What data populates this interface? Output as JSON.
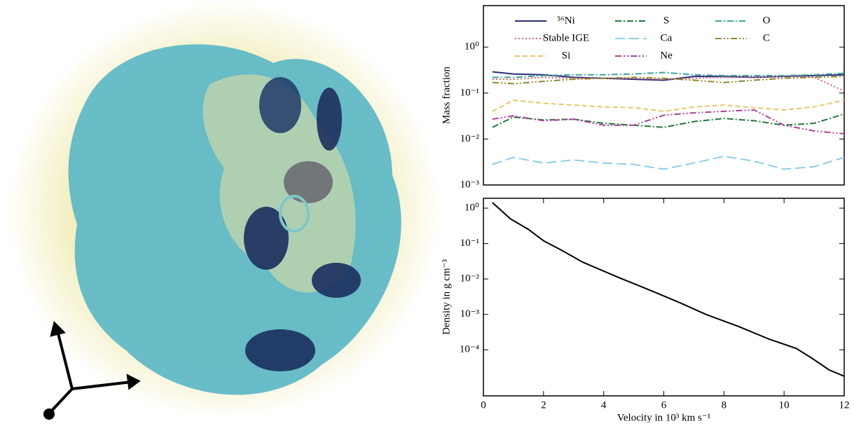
{
  "chart_data": [
    {
      "type": "line",
      "ylabel": "Mass fraction",
      "log_y": true,
      "xlim": [
        0,
        12
      ],
      "ylim": [
        0.001,
        8
      ],
      "yticks": [
        {
          "value": 1,
          "label": "10⁰"
        },
        {
          "value": 0.1,
          "label": "10⁻¹"
        },
        {
          "value": 0.01,
          "label": "10⁻²"
        },
        {
          "value": 0.001,
          "label": "10⁻³"
        }
      ],
      "legend": "upper center",
      "x": [
        0.3,
        1,
        2,
        3,
        4,
        5,
        6,
        7,
        8,
        9,
        10,
        11,
        12
      ],
      "series": [
        {
          "name": "⁵⁶Ni",
          "color": "#2b2c7c",
          "linestyle": "solid",
          "values": [
            0.29,
            0.26,
            0.25,
            0.22,
            0.21,
            0.2,
            0.19,
            0.23,
            0.23,
            0.22,
            0.23,
            0.24,
            0.25
          ]
        },
        {
          "name": "Stable IGE",
          "color": "#e0636b",
          "linestyle": "dotted",
          "values": [
            0.2,
            0.2,
            0.22,
            0.21,
            0.21,
            0.21,
            0.2,
            0.21,
            0.22,
            0.22,
            0.23,
            0.22,
            0.11
          ]
        },
        {
          "name": "Si",
          "color": "#e8c56a",
          "linestyle": "dashed",
          "values": [
            0.04,
            0.07,
            0.06,
            0.055,
            0.05,
            0.048,
            0.04,
            0.05,
            0.055,
            0.048,
            0.043,
            0.05,
            0.07
          ]
        },
        {
          "name": "S",
          "color": "#1f7a3a",
          "linestyle": "dashdot",
          "values": [
            0.018,
            0.03,
            0.026,
            0.027,
            0.022,
            0.02,
            0.018,
            0.024,
            0.028,
            0.025,
            0.02,
            0.022,
            0.035
          ]
        },
        {
          "name": "Ca",
          "color": "#8ecde8",
          "linestyle": "longdash",
          "values": [
            0.0028,
            0.004,
            0.003,
            0.0035,
            0.003,
            0.0028,
            0.0022,
            0.003,
            0.0042,
            0.0033,
            0.0022,
            0.0025,
            0.004
          ]
        },
        {
          "name": "Ne",
          "color": "#b0409c",
          "linestyle": "dashdotdot",
          "values": [
            0.027,
            0.032,
            0.025,
            0.027,
            0.02,
            0.02,
            0.033,
            0.037,
            0.04,
            0.043,
            0.02,
            0.015,
            0.013
          ]
        },
        {
          "name": "O",
          "color": "#3aa69a",
          "linestyle": "dashdot",
          "values": [
            0.22,
            0.22,
            0.24,
            0.25,
            0.25,
            0.26,
            0.28,
            0.25,
            0.24,
            0.24,
            0.24,
            0.25,
            0.27
          ]
        },
        {
          "name": "C",
          "color": "#8e8a2a",
          "linestyle": "dashdotdot",
          "values": [
            0.17,
            0.16,
            0.18,
            0.2,
            0.21,
            0.22,
            0.21,
            0.19,
            0.17,
            0.19,
            0.21,
            0.22,
            0.23
          ]
        }
      ]
    },
    {
      "type": "line",
      "ylabel": "Density in g cm⁻³",
      "xlabel": "Velocity in 10³ km s⁻¹",
      "log_y": true,
      "xlim": [
        0,
        12
      ],
      "ylim": [
        5e-06,
        1.9
      ],
      "xticks": [
        0,
        2,
        4,
        6,
        8,
        10,
        12
      ],
      "yticks": [
        {
          "value": 1,
          "label": "10⁰"
        },
        {
          "value": 0.1,
          "label": "10⁻¹"
        },
        {
          "value": 0.01,
          "label": "10⁻²"
        },
        {
          "value": 0.001,
          "label": "10⁻³"
        },
        {
          "value": 0.0001,
          "label": "10⁻⁴"
        }
      ],
      "x": [
        0.3,
        0.9,
        1.5,
        2,
        2.6,
        3.3,
        4.5,
        5.5,
        6.5,
        7.4,
        8.5,
        9.5,
        10.4,
        10.9,
        11.5,
        12
      ],
      "series": [
        {
          "color": "#000000",
          "linestyle": "solid",
          "values": [
            1.44,
            0.5,
            0.25,
            0.12,
            0.065,
            0.03,
            0.011,
            0.005,
            0.0022,
            0.001,
            0.00045,
            0.0002,
            0.00011,
            6e-05,
            2.7e-05,
            1.8e-05
          ]
        }
      ]
    }
  ]
}
